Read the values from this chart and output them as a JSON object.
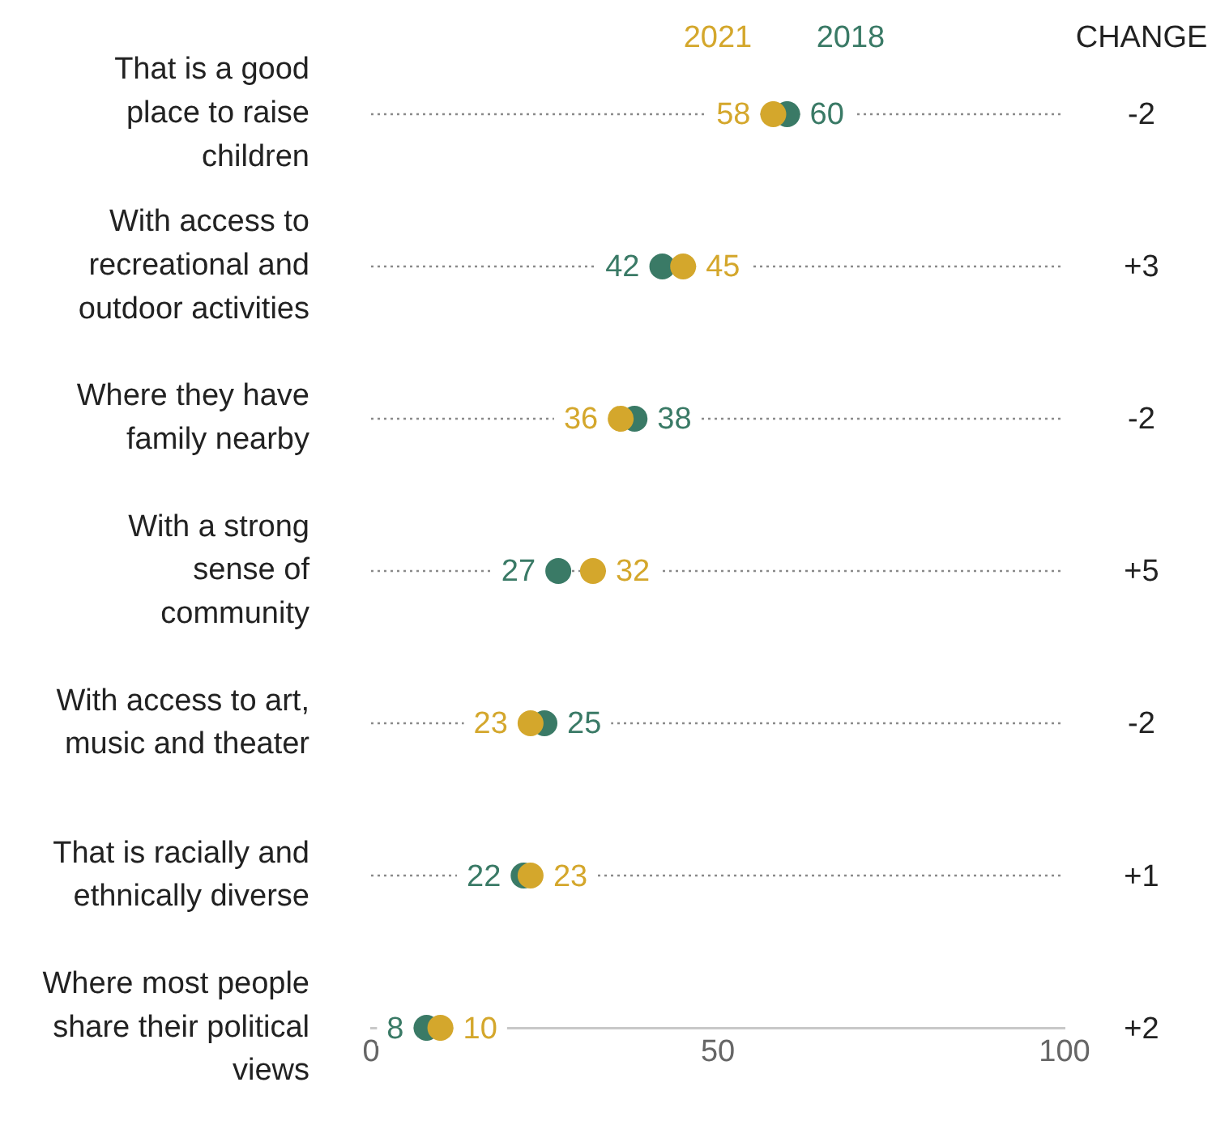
{
  "chart_data": {
    "type": "scatter",
    "categories": [
      "That is a good place to raise children",
      "With access to recreational and outdoor activities",
      "Where they have family nearby",
      "With a strong sense of community",
      "With access to art, music and theater",
      "That is racially and ethnically diverse",
      "Where most people share their political views"
    ],
    "series": [
      {
        "name": "2021",
        "color": "#d4a72c",
        "values": [
          58,
          45,
          36,
          32,
          23,
          23,
          10
        ]
      },
      {
        "name": "2018",
        "color": "#3a7a66",
        "values": [
          60,
          42,
          38,
          27,
          25,
          22,
          8
        ]
      }
    ],
    "orientation": "horizontal",
    "xlim": [
      0,
      100
    ],
    "xticks": [
      0,
      50,
      100
    ],
    "grid": "y",
    "legend": "top",
    "marker": "circle",
    "data_labels": true,
    "annotations": [
      "CHANGE",
      "-2",
      "+3",
      "-2",
      "+5",
      "-2",
      "+1",
      "+2"
    ]
  }
}
